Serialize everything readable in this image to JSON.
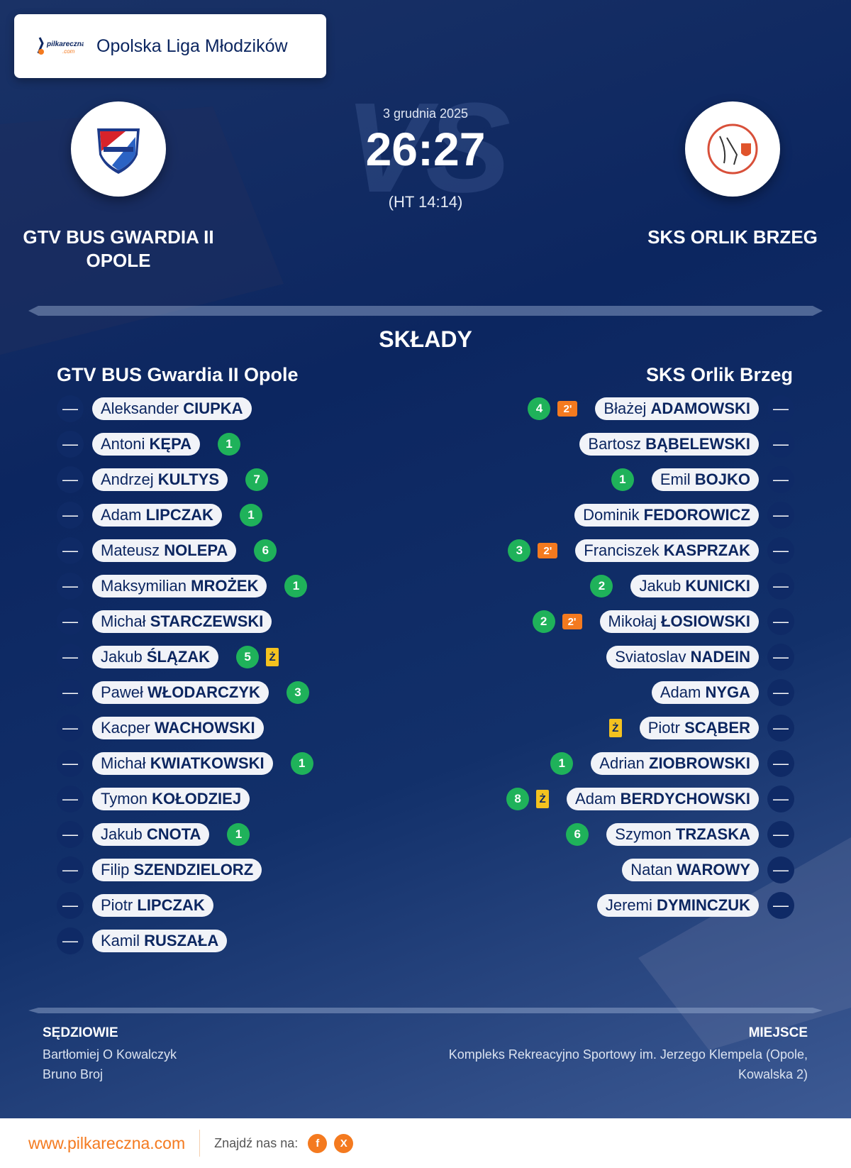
{
  "league": "Opolska Liga Młodzików",
  "brand_logo": {
    "text": "pilkareczna",
    "sub": ".com"
  },
  "match": {
    "date": "3 grudnia 2025",
    "score": "26:27",
    "halftime": "(HT 14:14)",
    "vs": "VS"
  },
  "home": {
    "name_upper": "GTV BUS GWARDIA II OPOLE",
    "name": "GTV BUS Gwardia II Opole",
    "players": [
      {
        "first": "Aleksander",
        "last": "CIUPKA",
        "number": "—"
      },
      {
        "first": "Antoni",
        "last": "KĘPA",
        "number": "—",
        "goals": "1"
      },
      {
        "first": "Andrzej",
        "last": "KULTYS",
        "number": "—",
        "goals": "7"
      },
      {
        "first": "Adam",
        "last": "LIPCZAK",
        "number": "—",
        "goals": "1"
      },
      {
        "first": "Mateusz",
        "last": "NOLEPA",
        "number": "—",
        "goals": "6"
      },
      {
        "first": "Maksymilian",
        "last": "MROŻEK",
        "number": "—",
        "goals": "1"
      },
      {
        "first": "Michał",
        "last": "STARCZEWSKI",
        "number": "—"
      },
      {
        "first": "Jakub",
        "last": "ŚLĄZAK",
        "number": "—",
        "goals": "5",
        "yellow": "Ż"
      },
      {
        "first": "Paweł",
        "last": "WŁODARCZYK",
        "number": "—",
        "goals": "3"
      },
      {
        "first": "Kacper",
        "last": "WACHOWSKI",
        "number": "—"
      },
      {
        "first": "Michał",
        "last": "KWIATKOWSKI",
        "number": "—",
        "goals": "1"
      },
      {
        "first": "Tymon",
        "last": "KOŁODZIEJ",
        "number": "—"
      },
      {
        "first": "Jakub",
        "last": "CNOTA",
        "number": "—",
        "goals": "1"
      },
      {
        "first": "Filip",
        "last": "SZENDZIELORZ",
        "number": "—"
      },
      {
        "first": "Piotr",
        "last": "LIPCZAK",
        "number": "—"
      },
      {
        "first": "Kamil",
        "last": "RUSZAŁA",
        "number": "—"
      }
    ]
  },
  "away": {
    "name_upper": "SKS ORLIK BRZEG",
    "name": "SKS Orlik Brzeg",
    "players": [
      {
        "first": "Błażej",
        "last": "ADAMOWSKI",
        "number": "—",
        "goals": "4",
        "suspension": "2'"
      },
      {
        "first": "Bartosz",
        "last": "BĄBELEWSKI",
        "number": "—"
      },
      {
        "first": "Emil",
        "last": "BOJKO",
        "number": "—",
        "goals": "1"
      },
      {
        "first": "Dominik",
        "last": "FEDOROWICZ",
        "number": "—"
      },
      {
        "first": "Franciszek",
        "last": "KASPRZAK",
        "number": "—",
        "goals": "3",
        "suspension": "2'"
      },
      {
        "first": "Jakub",
        "last": "KUNICKI",
        "number": "—",
        "goals": "2"
      },
      {
        "first": "Mikołaj",
        "last": "ŁOSIOWSKI",
        "number": "—",
        "goals": "2",
        "suspension": "2'"
      },
      {
        "first": "Sviatoslav",
        "last": "NADEIN",
        "number": "—"
      },
      {
        "first": "Adam",
        "last": "NYGA",
        "number": "—"
      },
      {
        "first": "Piotr",
        "last": "SCĄBER",
        "number": "—",
        "yellow": "Ż"
      },
      {
        "first": "Adrian",
        "last": "ZIOBROWSKI",
        "number": "—",
        "goals": "1"
      },
      {
        "first": "Adam",
        "last": "BERDYCHOWSKI",
        "number": "—",
        "goals": "8",
        "yellow": "Ż"
      },
      {
        "first": "Szymon",
        "last": "TRZASKA",
        "number": "—",
        "goals": "6"
      },
      {
        "first": "Natan",
        "last": "WAROWY",
        "number": "—"
      },
      {
        "first": "Jeremi",
        "last": "DYMINCZUK",
        "number": "—"
      }
    ]
  },
  "lineups_title": "SKŁADY",
  "referees": {
    "label": "SĘDZIOWIE",
    "names": [
      "Bartłomiej O Kowalczyk",
      "Bruno Broj"
    ]
  },
  "venue": {
    "label": "MIEJSCE",
    "text": "Kompleks Rekreacyjno Sportowy im. Jerzego Klempela (Opole, Kowalska 2)"
  },
  "footer": {
    "site": "www.pilkareczna.com",
    "find_us": "Znajdź nas na:",
    "social": [
      "f",
      "X"
    ]
  },
  "colors": {
    "navy": "#0c2660",
    "goal": "#1fb25a",
    "suspension": "#f47a1f",
    "yellow": "#f4c21f"
  }
}
